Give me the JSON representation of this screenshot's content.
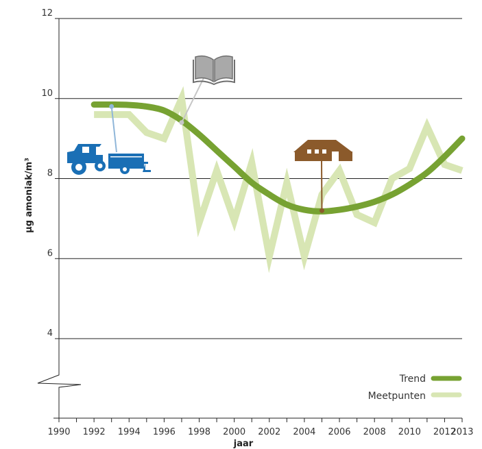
{
  "chart_data": {
    "type": "line",
    "xlabel": "jaar",
    "ylabel": "µg amoniak/m³",
    "xlim": [
      1990,
      2013
    ],
    "ylim": [
      2,
      12
    ],
    "y_ticks": [
      4,
      6,
      8,
      10,
      12
    ],
    "x_ticks": [
      1990,
      1992,
      1994,
      1996,
      1998,
      2000,
      2002,
      2004,
      2006,
      2008,
      2010,
      2012,
      2013
    ],
    "grid": true,
    "axis_break": true,
    "legend_position": "bottom-right",
    "series": [
      {
        "name": "Meetpunten",
        "color": "#d8e6b4",
        "x": [
          1992,
          1993,
          1994,
          1995,
          1996,
          1997,
          1998,
          1999,
          2000,
          2001,
          2002,
          2003,
          2004,
          2005,
          2006,
          2007,
          2008,
          2009,
          2010,
          2011,
          2012,
          2013
        ],
        "values": [
          9.6,
          9.6,
          9.6,
          9.15,
          9.0,
          10.0,
          6.9,
          8.2,
          6.95,
          8.4,
          6.05,
          7.9,
          6.05,
          7.6,
          8.2,
          7.1,
          6.9,
          8.0,
          8.25,
          9.3,
          8.35,
          8.2
        ]
      },
      {
        "name": "Trend",
        "color": "#77a232",
        "x": [
          1992,
          1993,
          1994,
          1995,
          1996,
          1997,
          1998,
          1999,
          2000,
          2001,
          2002,
          2003,
          2004,
          2005,
          2006,
          2007,
          2008,
          2009,
          2010,
          2011,
          2012,
          2013
        ],
        "values": [
          9.85,
          9.85,
          9.84,
          9.8,
          9.7,
          9.45,
          9.1,
          8.7,
          8.3,
          7.9,
          7.6,
          7.35,
          7.22,
          7.18,
          7.22,
          7.3,
          7.42,
          7.6,
          7.85,
          8.15,
          8.55,
          9.0
        ]
      }
    ],
    "annotations": [
      {
        "icon": "tractor-icon",
        "color": "#1a6fb5",
        "x": 1993,
        "y": 9.8
      },
      {
        "icon": "book-icon",
        "color": "#a9a9a9",
        "x": 1997,
        "y": 9.4
      },
      {
        "icon": "barn-icon",
        "color": "#8b5a2b",
        "x": 2005,
        "y": 7.2
      }
    ]
  }
}
